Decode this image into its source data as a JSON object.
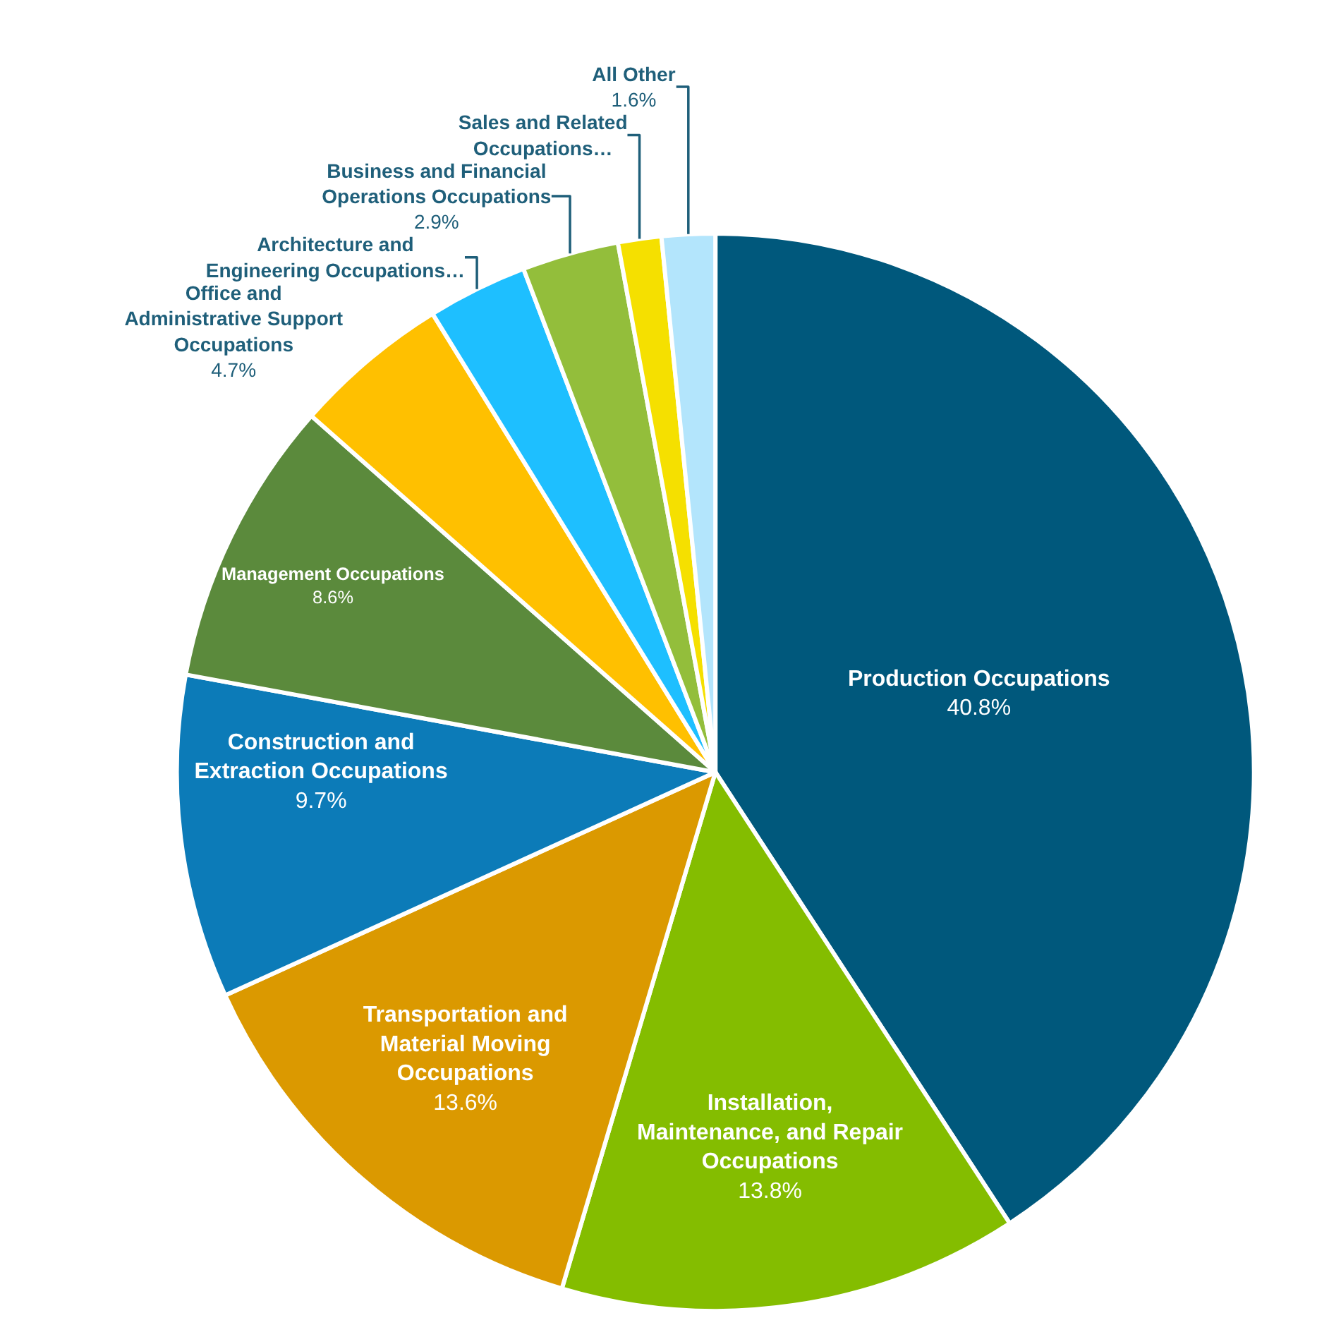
{
  "chart_data": {
    "type": "pie",
    "categories": [
      "Production Occupations",
      "Installation, Maintenance, and Repair Occupations",
      "Transportation and Material Moving Occupations",
      "Construction and Extraction Occupations",
      "Management Occupations",
      "Office and Administrative Support Occupations",
      "Architecture and Engineering Occupations…",
      "Business and Financial Operations Occupations",
      "Sales and Related Occupations…",
      "All Other"
    ],
    "values": [
      40.8,
      13.8,
      13.6,
      9.7,
      8.6,
      4.7,
      3.0,
      2.9,
      1.3,
      1.6
    ],
    "value_labels": [
      "40.8%",
      "13.8%",
      "13.6%",
      "9.7%",
      "8.6%",
      "4.7%",
      null,
      "2.9%",
      null,
      "1.6%"
    ],
    "colors": [
      "#00587c",
      "#84bd00",
      "#db9900",
      "#0c7bb8",
      "#5b8a3c",
      "#ffc000",
      "#1ebfff",
      "#93be3b",
      "#f5e000",
      "#b3e5fc"
    ],
    "legend": false
  }
}
